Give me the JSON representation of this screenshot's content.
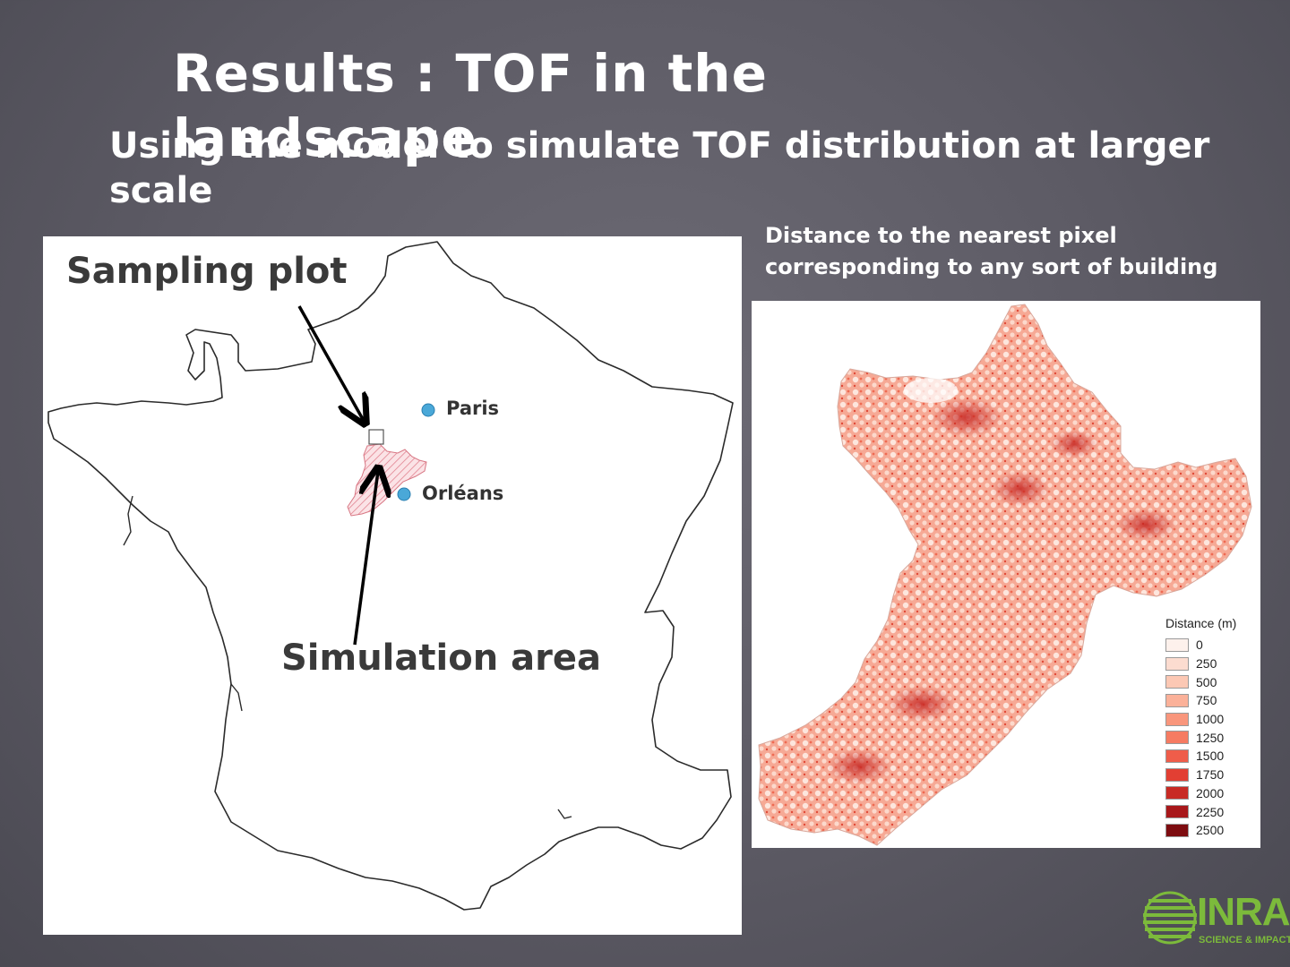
{
  "slide": {
    "title": "Results : TOF in the landscape",
    "subtitle": "Using the model to simulate TOF distribution at larger scale"
  },
  "left_map": {
    "label_sampling": "Sampling plot",
    "label_simulation": "Simulation area",
    "cities": [
      {
        "name": "Paris",
        "color": "#4aa8d8"
      },
      {
        "name": "Orléans",
        "color": "#4aa8d8"
      }
    ]
  },
  "right_map": {
    "caption_line1": "Distance to the nearest pixel",
    "caption_line2": "corresponding to any sort of building",
    "legend_title": "Distance (m)",
    "legend": [
      {
        "label": "0",
        "color": "#fdf1ec"
      },
      {
        "label": "250",
        "color": "#fcdcd0"
      },
      {
        "label": "500",
        "color": "#fcc8b4"
      },
      {
        "label": "750",
        "color": "#fbb199"
      },
      {
        "label": "1000",
        "color": "#f9967c"
      },
      {
        "label": "1250",
        "color": "#f67b62"
      },
      {
        "label": "1500",
        "color": "#ef5d4a"
      },
      {
        "label": "1750",
        "color": "#e23f33"
      },
      {
        "label": "2000",
        "color": "#c82a24"
      },
      {
        "label": "2250",
        "color": "#a8171a"
      },
      {
        "label": "2500",
        "color": "#7d0c10"
      }
    ]
  },
  "logo": {
    "text": "INRA",
    "tagline": "SCIENCE & IMPACT",
    "color": "#7cba3b"
  }
}
